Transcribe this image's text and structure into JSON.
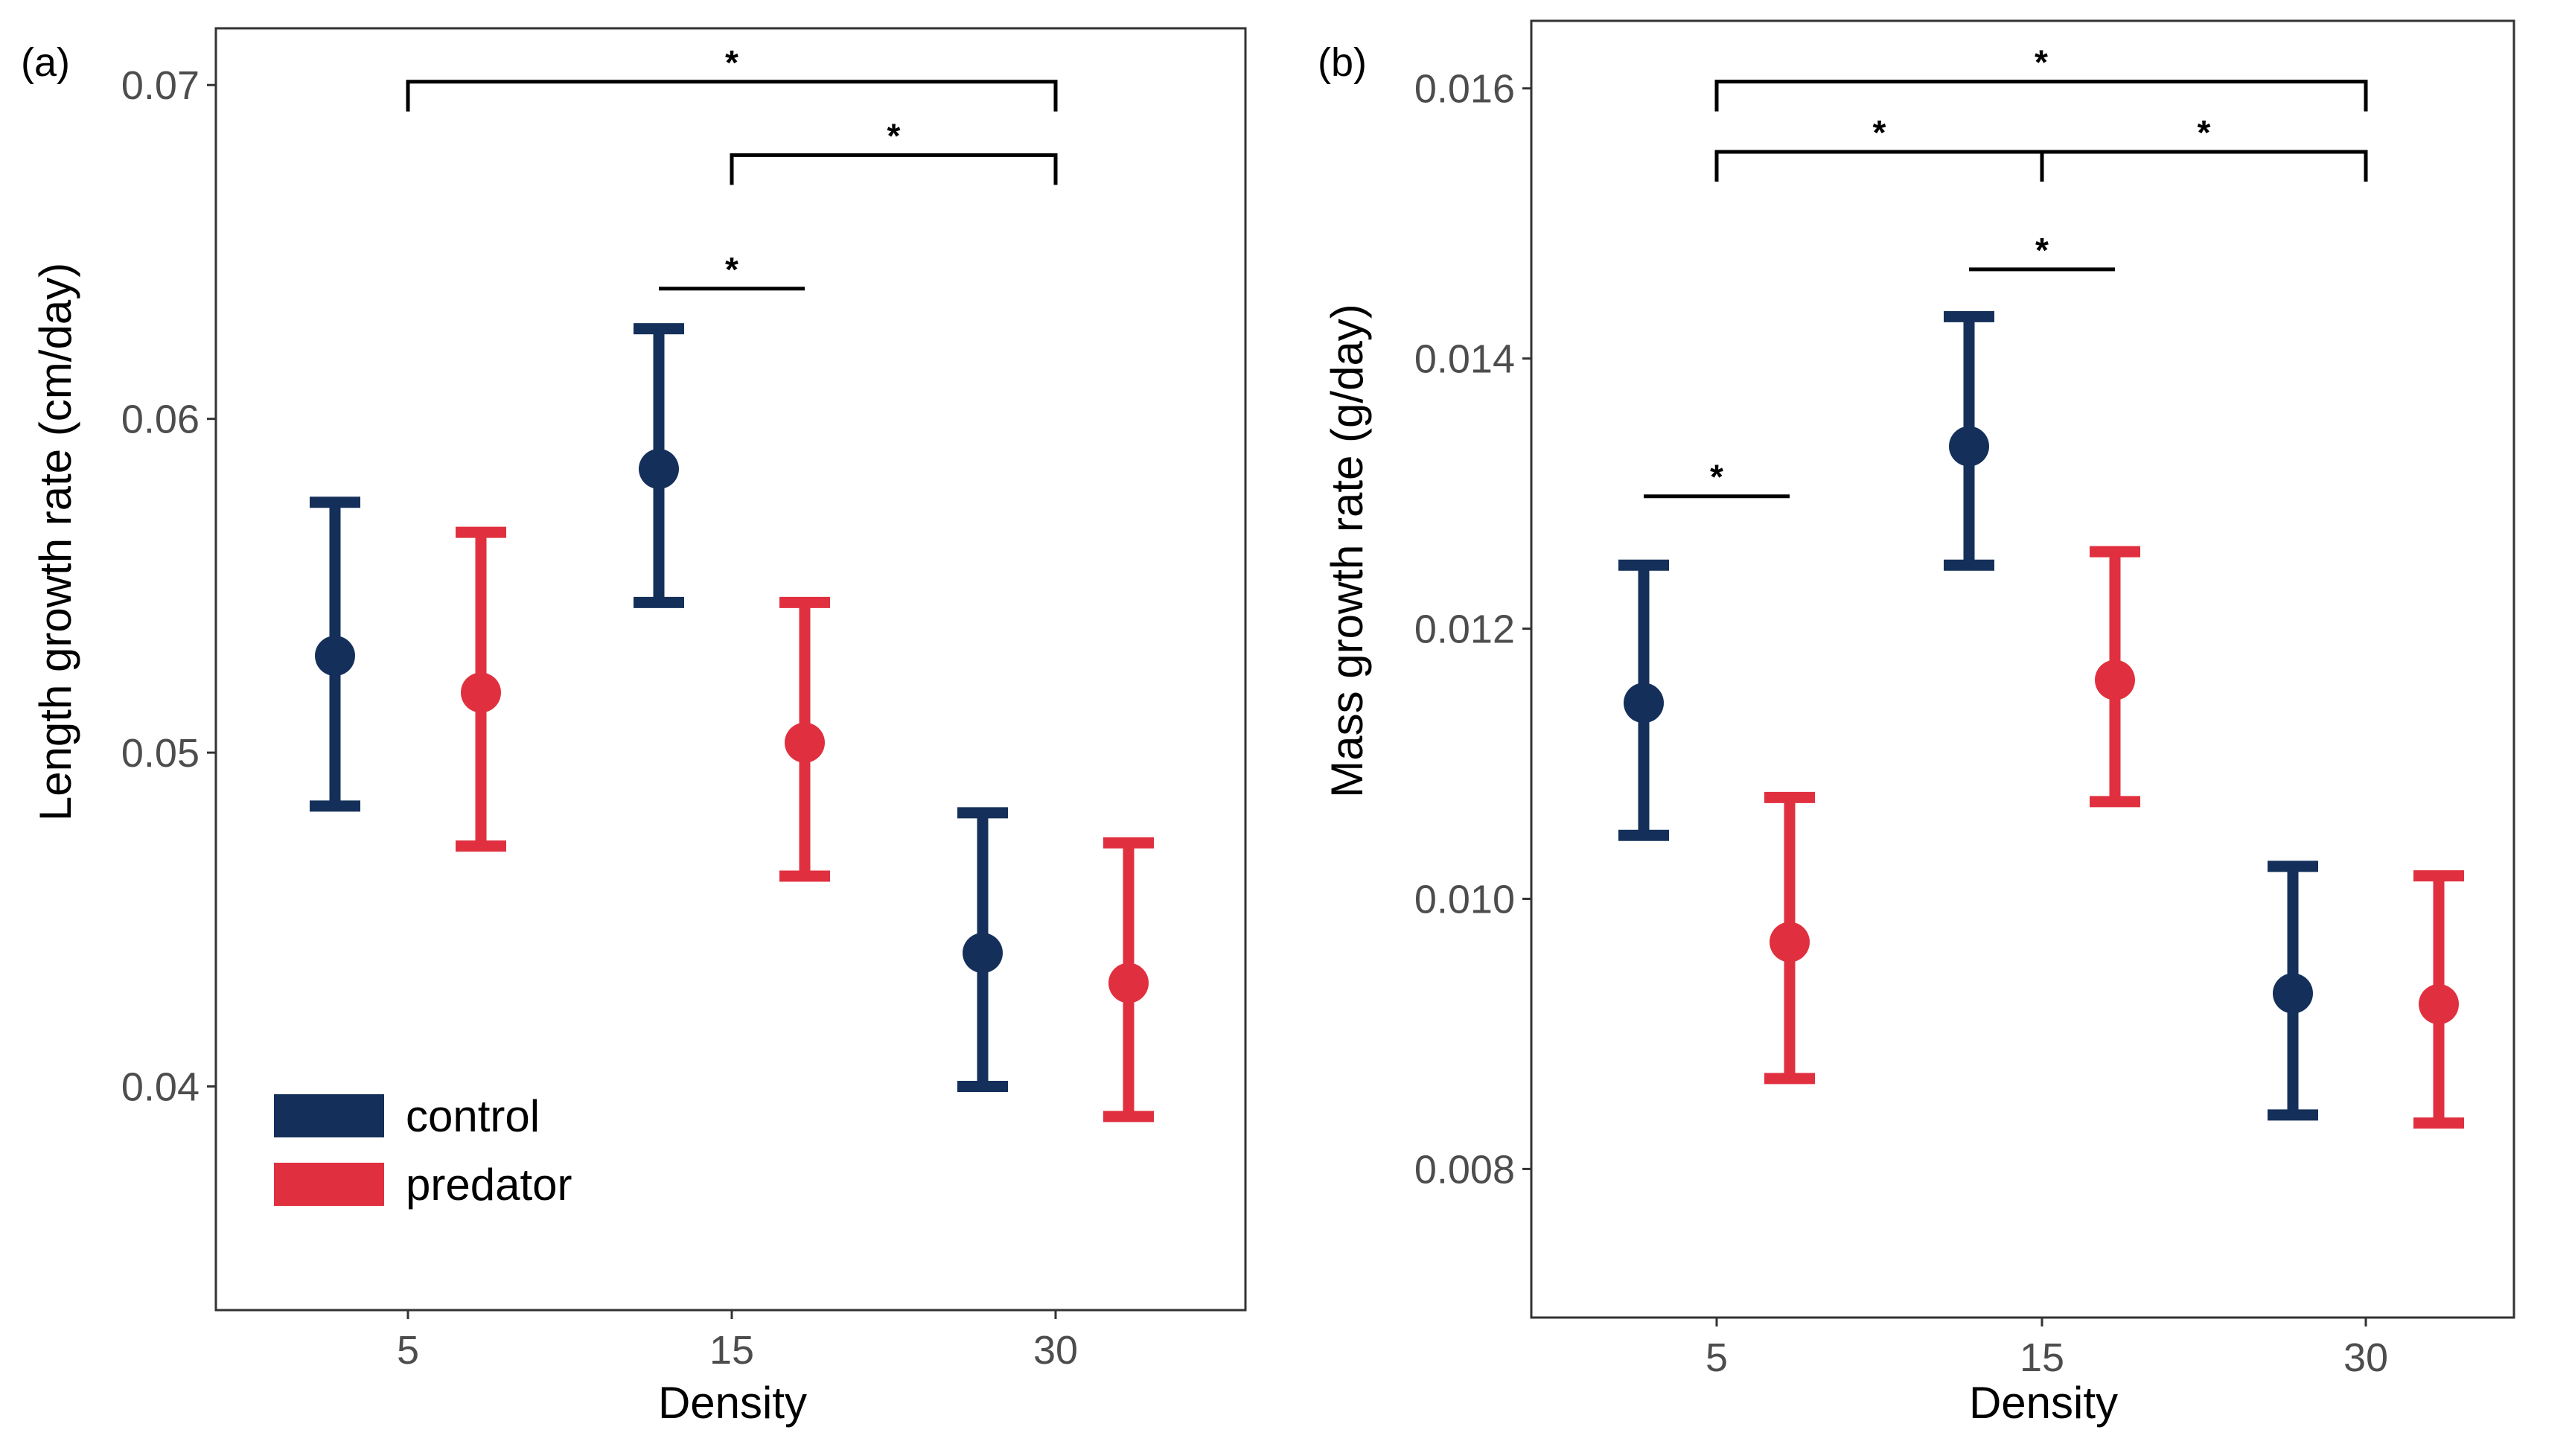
{
  "legend": {
    "items": [
      {
        "label": "control",
        "color": "#14305a"
      },
      {
        "label": "predator",
        "color": "#e0303f"
      }
    ]
  },
  "chart_data": [
    {
      "panel": "(a)",
      "type": "scatter",
      "subtype": "point-with-errorbars",
      "xlabel": "Density",
      "ylabel": "Length growth rate (cm/day)",
      "categories": [
        "5",
        "15",
        "30"
      ],
      "yticks": [
        "0.04",
        "0.05",
        "0.06",
        "0.07"
      ],
      "ylim": [
        0.0333,
        0.0717
      ],
      "series": [
        {
          "name": "control",
          "color": "#14305a",
          "values": [
            0.0529,
            0.0585,
            0.044
          ],
          "lower": [
            0.0484,
            0.0545,
            0.04
          ],
          "upper": [
            0.0575,
            0.0627,
            0.0482
          ]
        },
        {
          "name": "predator",
          "color": "#e0303f",
          "values": [
            0.0518,
            0.0503,
            0.0431
          ],
          "lower": [
            0.0472,
            0.0463,
            0.0391
          ],
          "upper": [
            0.0566,
            0.0545,
            0.0473
          ]
        }
      ],
      "significance": [
        {
          "from": "15 control",
          "to": "15 predator",
          "label": "*",
          "type": "line",
          "y": 0.0639
        },
        {
          "from": "15",
          "to": "30",
          "label": "*",
          "type": "bracket",
          "y": 0.0679
        },
        {
          "from": "5",
          "to": "30",
          "label": "*",
          "type": "bracket",
          "y": 0.0701
        }
      ]
    },
    {
      "panel": "(b)",
      "type": "scatter",
      "subtype": "point-with-errorbars",
      "xlabel": "Density",
      "ylabel": "Mass growth rate (g/day)",
      "categories": [
        "5",
        "15",
        "30"
      ],
      "yticks": [
        "0.008",
        "0.010",
        "0.012",
        "0.014",
        "0.016"
      ],
      "ylim": [
        0.0069,
        0.0165
      ],
      "series": [
        {
          "name": "control",
          "color": "#14305a",
          "values": [
            0.01145,
            0.01335,
            0.0093
          ],
          "lower": [
            0.01047,
            0.01247,
            0.0084
          ],
          "upper": [
            0.01247,
            0.01431,
            0.01024
          ]
        },
        {
          "name": "predator",
          "color": "#e0303f",
          "values": [
            0.00968,
            0.01162,
            0.00922
          ],
          "lower": [
            0.00867,
            0.01072,
            0.00834
          ],
          "upper": [
            0.01075,
            0.01257,
            0.01017
          ]
        }
      ],
      "significance": [
        {
          "from": "5 control",
          "to": "5 predator",
          "label": "*",
          "type": "line",
          "y": 0.01298
        },
        {
          "from": "15 control",
          "to": "15 predator",
          "label": "*",
          "type": "line",
          "y": 0.01466
        },
        {
          "from": "5",
          "to": "15",
          "label": "*",
          "type": "bracket",
          "y": 0.01553
        },
        {
          "from": "15",
          "to": "30",
          "label": "*",
          "type": "bracket",
          "y": 0.01553
        },
        {
          "from": "5",
          "to": "30",
          "label": "*",
          "type": "bracket",
          "y": 0.01605
        }
      ]
    }
  ]
}
